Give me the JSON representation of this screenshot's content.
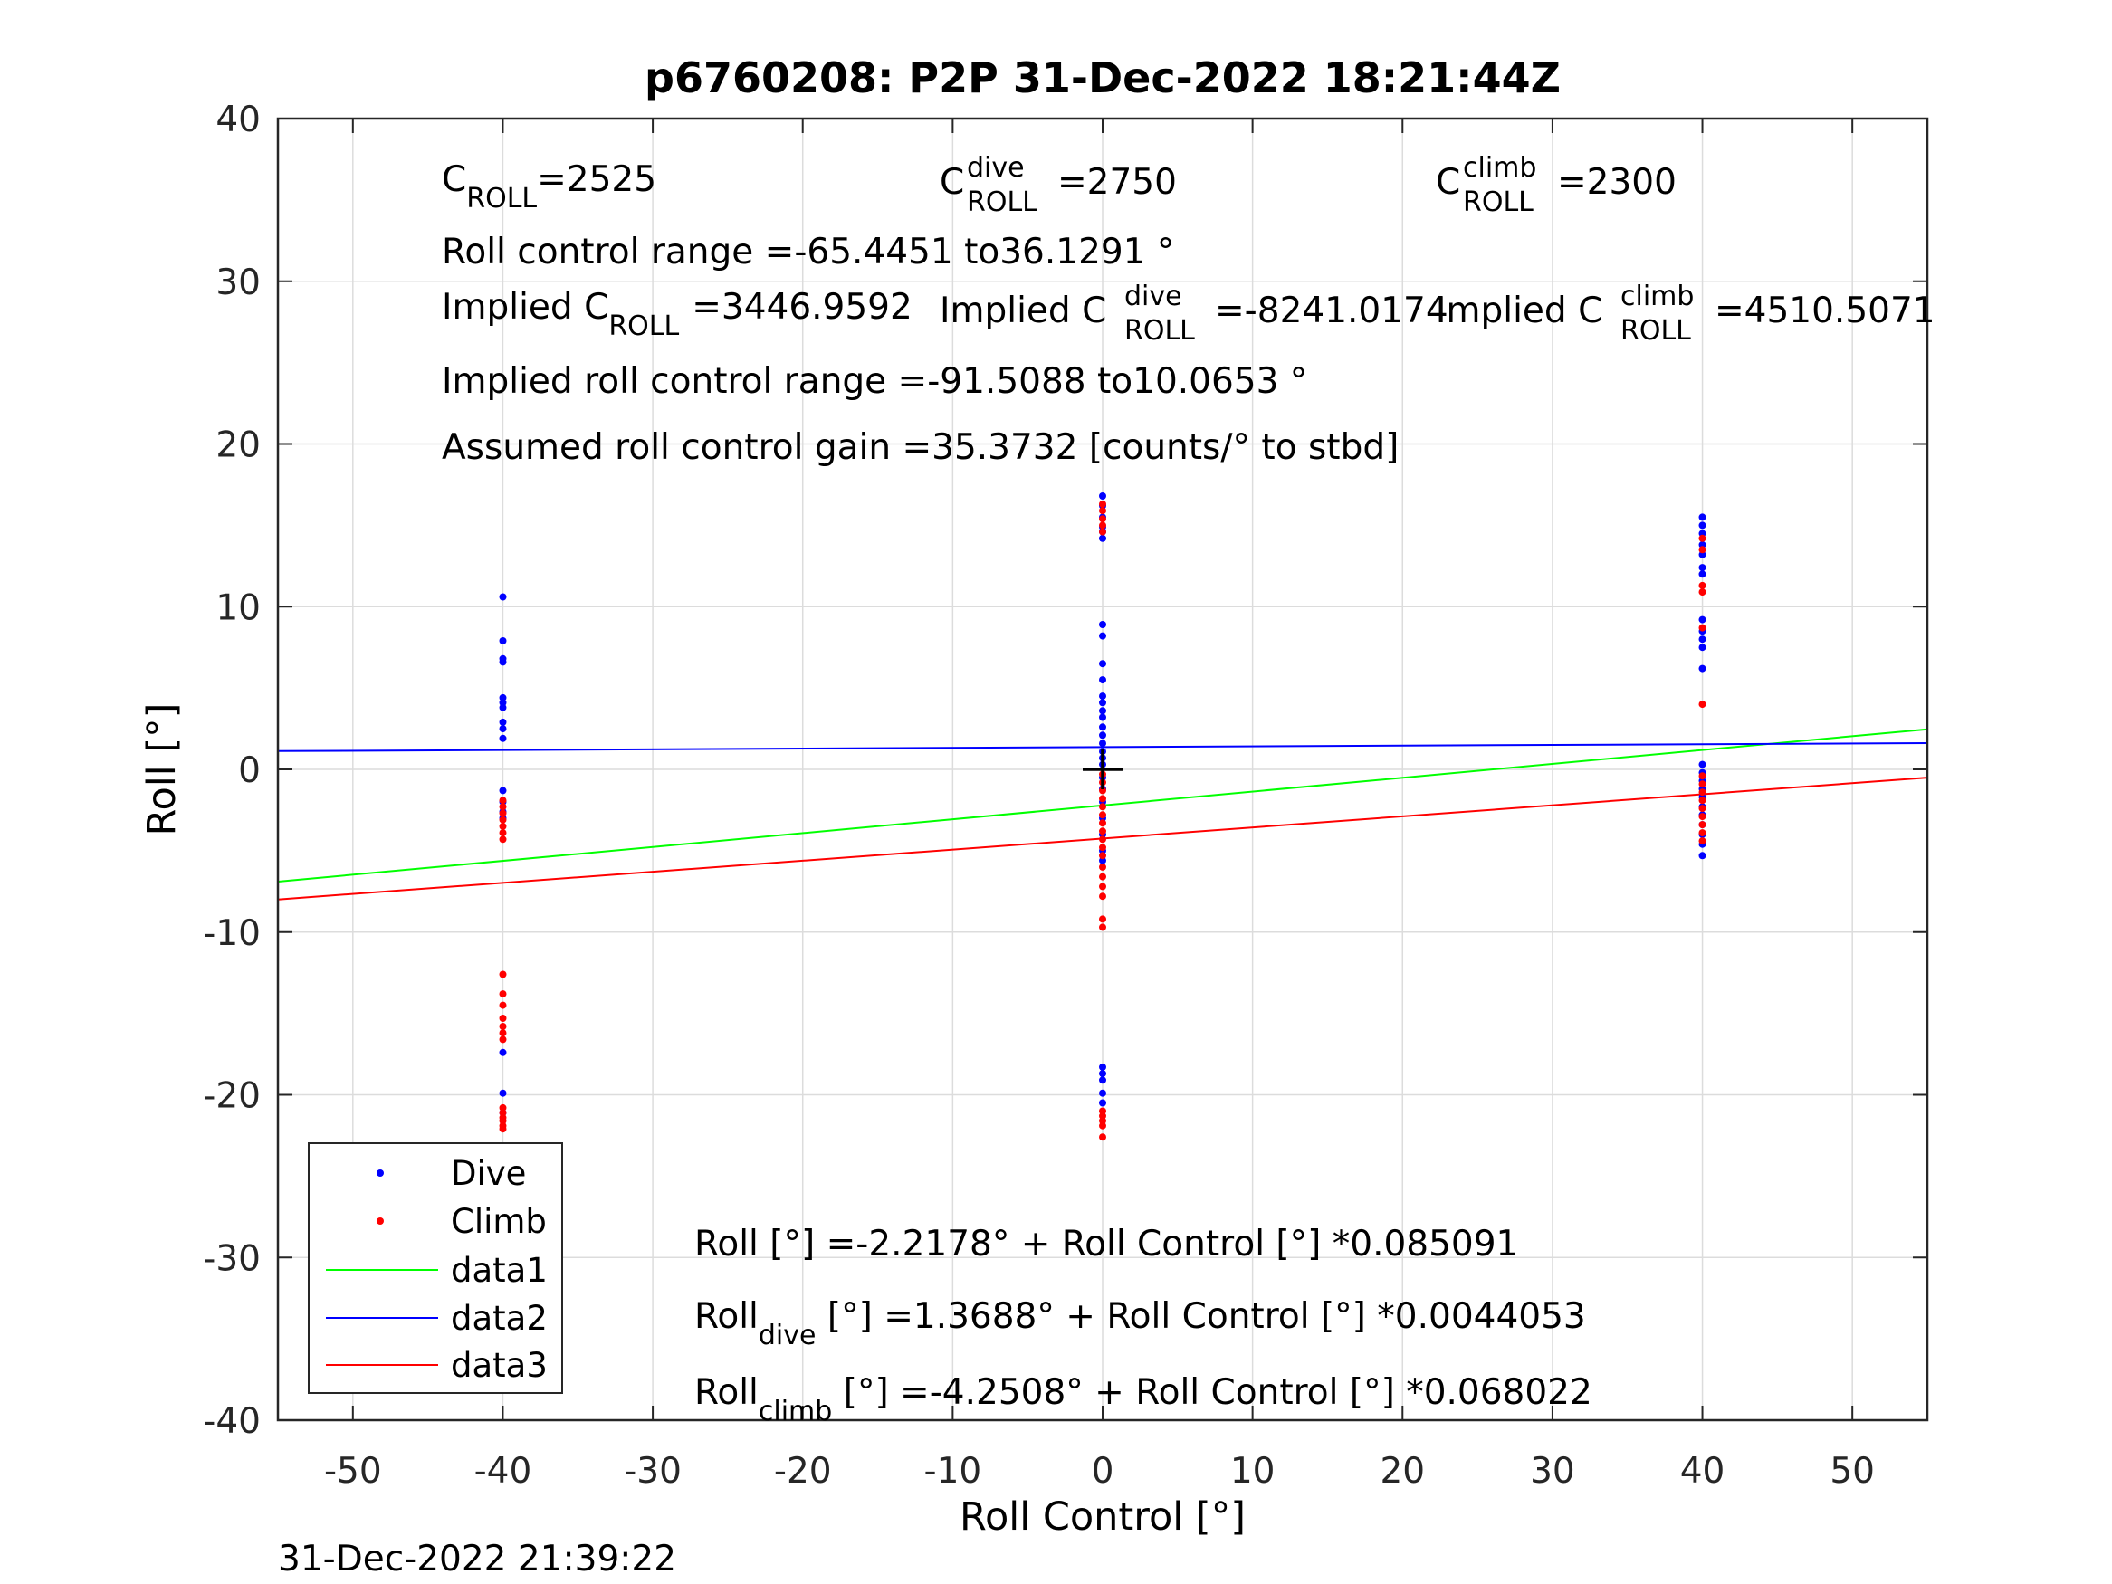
{
  "chart_data": {
    "type": "scatter",
    "title": "p6760208: P2P 31-Dec-2022 18:21:44Z",
    "xlabel": "Roll Control [°]",
    "ylabel": "Roll [°]",
    "xlim": [
      -55,
      55
    ],
    "ylim": [
      -40,
      40
    ],
    "xticks": [
      "-50",
      "-40",
      "-30",
      "-20",
      "-10",
      "0",
      "10",
      "20",
      "30",
      "40",
      "50"
    ],
    "yticks": [
      "-40",
      "-30",
      "-20",
      "-10",
      "0",
      "10",
      "20",
      "30",
      "40"
    ],
    "grid": true,
    "legend_placement": "bottom-left",
    "timestamp": "31-Dec-2022 21:39:22",
    "annotations": {
      "c_roll": {
        "base": "C",
        "sub": "ROLL",
        "value": "=2525"
      },
      "c_roll_dive": {
        "base": "C",
        "sup": "dive",
        "sub": "ROLL",
        "value": "=2750"
      },
      "c_roll_climb": {
        "base": "C",
        "sup": "climb",
        "sub": "ROLL",
        "value": "=2300"
      },
      "roll_control_range": "Roll control range =-65.4451 to36.1291 °",
      "implied_c_roll": {
        "prefix": "Implied C",
        "sub": "ROLL",
        "value": "=3446.9592"
      },
      "implied_c_roll_dive": {
        "prefix": "Implied C",
        "sup": "dive",
        "sub": "ROLL",
        "value": "=-8241.0174"
      },
      "implied_c_roll_climb": {
        "prefix": "Implied C",
        "sup": "climb",
        "sub": "ROLL",
        "value": "=4510.5071"
      },
      "implied_range": "Implied roll control range =-91.5088 to10.0653 °",
      "gain": "Assumed roll control gain =35.3732 [counts/° to stbd]",
      "fit_all": "Roll [°] =-2.2178° + Roll Control [°] *0.085091",
      "fit_dive": {
        "base": "Roll",
        "sub": "dive",
        "rest": " [°] =1.3688° + Roll Control [°] *0.0044053"
      },
      "fit_climb": {
        "base": "Roll",
        "sub": "climb",
        "rest": " [°] =-4.2508° + Roll Control [°] *0.068022"
      }
    },
    "series": [
      {
        "name": "Dive",
        "kind": "points",
        "color": "#0000ff",
        "points": [
          [
            -40,
            10.6
          ],
          [
            -40,
            7.9
          ],
          [
            -40,
            6.8
          ],
          [
            -40,
            6.6
          ],
          [
            -40,
            4.4
          ],
          [
            -40,
            4.1
          ],
          [
            -40,
            3.8
          ],
          [
            -40,
            2.9
          ],
          [
            -40,
            2.5
          ],
          [
            -40,
            1.9
          ],
          [
            -40,
            -1.3
          ],
          [
            -40,
            -2.0
          ],
          [
            -40,
            -2.6
          ],
          [
            -40,
            -3.0
          ],
          [
            -40,
            -17.4
          ],
          [
            -40,
            -19.9
          ],
          [
            -40,
            -21.1
          ],
          [
            0,
            16.8
          ],
          [
            0,
            16.2
          ],
          [
            0,
            15.5
          ],
          [
            0,
            14.9
          ],
          [
            0,
            14.6
          ],
          [
            0,
            14.2
          ],
          [
            0,
            8.9
          ],
          [
            0,
            8.2
          ],
          [
            0,
            6.5
          ],
          [
            0,
            5.5
          ],
          [
            0,
            4.5
          ],
          [
            0,
            4.1
          ],
          [
            0,
            3.6
          ],
          [
            0,
            3.2
          ],
          [
            0,
            2.6
          ],
          [
            0,
            2.1
          ],
          [
            0,
            1.6
          ],
          [
            0,
            1.1
          ],
          [
            0,
            0.7
          ],
          [
            0,
            0.3
          ],
          [
            0,
            -0.5
          ],
          [
            0,
            -1.2
          ],
          [
            0,
            -2.0
          ],
          [
            0,
            -3.0
          ],
          [
            0,
            -4.0
          ],
          [
            0,
            -5.0
          ],
          [
            0,
            -5.6
          ],
          [
            0,
            -18.3
          ],
          [
            0,
            -18.7
          ],
          [
            0,
            -19.1
          ],
          [
            0,
            -19.9
          ],
          [
            0,
            -20.5
          ],
          [
            40,
            15.5
          ],
          [
            40,
            15.0
          ],
          [
            40,
            14.5
          ],
          [
            40,
            13.8
          ],
          [
            40,
            13.2
          ],
          [
            40,
            12.4
          ],
          [
            40,
            12.0
          ],
          [
            40,
            9.2
          ],
          [
            40,
            8.5
          ],
          [
            40,
            8.0
          ],
          [
            40,
            7.5
          ],
          [
            40,
            6.2
          ],
          [
            40,
            0.3
          ],
          [
            40,
            -0.2
          ],
          [
            40,
            -0.7
          ],
          [
            40,
            -1.2
          ],
          [
            40,
            -1.7
          ],
          [
            40,
            -2.3
          ],
          [
            40,
            -2.8
          ],
          [
            40,
            -3.4
          ],
          [
            40,
            -4.0
          ],
          [
            40,
            -4.6
          ],
          [
            40,
            -5.3
          ]
        ]
      },
      {
        "name": "Climb",
        "kind": "points",
        "color": "#ff0000",
        "points": [
          [
            -40,
            -1.9
          ],
          [
            -40,
            -2.3
          ],
          [
            -40,
            -2.7
          ],
          [
            -40,
            -3.1
          ],
          [
            -40,
            -3.5
          ],
          [
            -40,
            -3.9
          ],
          [
            -40,
            -4.3
          ],
          [
            -40,
            -12.6
          ],
          [
            -40,
            -13.8
          ],
          [
            -40,
            -14.5
          ],
          [
            -40,
            -15.3
          ],
          [
            -40,
            -15.8
          ],
          [
            -40,
            -16.2
          ],
          [
            -40,
            -16.6
          ],
          [
            -40,
            -20.8
          ],
          [
            -40,
            -21.1
          ],
          [
            -40,
            -21.4
          ],
          [
            -40,
            -21.6
          ],
          [
            -40,
            -21.9
          ],
          [
            -40,
            -22.1
          ],
          [
            0,
            16.3
          ],
          [
            0,
            15.9
          ],
          [
            0,
            15.4
          ],
          [
            0,
            15.0
          ],
          [
            0,
            14.6
          ],
          [
            0,
            -0.3
          ],
          [
            0,
            -0.8
          ],
          [
            0,
            -1.3
          ],
          [
            0,
            -1.8
          ],
          [
            0,
            -2.3
          ],
          [
            0,
            -2.8
          ],
          [
            0,
            -3.3
          ],
          [
            0,
            -3.8
          ],
          [
            0,
            -4.3
          ],
          [
            0,
            -4.8
          ],
          [
            0,
            -5.3
          ],
          [
            0,
            -6.0
          ],
          [
            0,
            -6.6
          ],
          [
            0,
            -7.2
          ],
          [
            0,
            -7.8
          ],
          [
            0,
            -9.2
          ],
          [
            0,
            -9.7
          ],
          [
            0,
            -21.0
          ],
          [
            0,
            -21.3
          ],
          [
            0,
            -21.6
          ],
          [
            0,
            -21.9
          ],
          [
            0,
            -22.6
          ],
          [
            40,
            14.2
          ],
          [
            40,
            13.5
          ],
          [
            40,
            11.3
          ],
          [
            40,
            10.9
          ],
          [
            40,
            8.7
          ],
          [
            40,
            4.0
          ],
          [
            40,
            -0.4
          ],
          [
            40,
            -0.9
          ],
          [
            40,
            -1.4
          ],
          [
            40,
            -1.9
          ],
          [
            40,
            -2.4
          ],
          [
            40,
            -2.9
          ],
          [
            40,
            -3.4
          ],
          [
            40,
            -3.9
          ],
          [
            40,
            -4.4
          ]
        ]
      },
      {
        "name": "data1",
        "kind": "line",
        "color": "#00ff00",
        "x": [
          -55,
          55
        ],
        "y": [
          -6.898,
          2.462
        ]
      },
      {
        "name": "data2",
        "kind": "line",
        "color": "#0000ff",
        "x": [
          -55,
          55
        ],
        "y": [
          1.126,
          1.611
        ]
      },
      {
        "name": "data3",
        "kind": "line",
        "color": "#ff0000",
        "x": [
          -55,
          55
        ],
        "y": [
          -7.992,
          -0.509
        ]
      }
    ],
    "marker": {
      "x": 0,
      "y": 0,
      "color": "#000000",
      "shape": "plus"
    }
  }
}
